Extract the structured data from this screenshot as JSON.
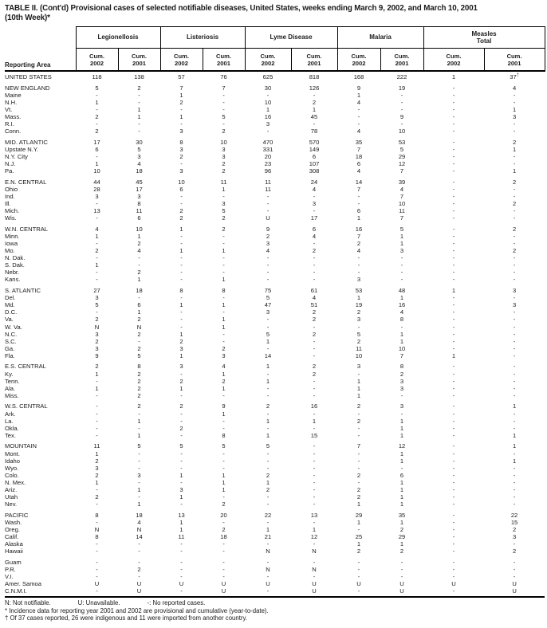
{
  "title": {
    "line1": "TABLE II. (Cont'd) Provisional cases of selected notifiable diseases, United States, weeks ending March 9, 2002, and March 10, 2001",
    "line2": "(10th Week)*"
  },
  "table": {
    "reporting_area_label": "Reporting Area",
    "groups": [
      {
        "label": "Legionellosis"
      },
      {
        "label": "Listeriosis"
      },
      {
        "label": "Lyme Disease"
      },
      {
        "label": "Malaria"
      },
      {
        "label": "Measles\nTotal"
      }
    ],
    "subheader_label": "Cum.",
    "subheader_years": [
      "2002",
      "2001"
    ],
    "rows": [
      {
        "area": "UNITED STATES",
        "gap": false,
        "values": [
          "118",
          "138",
          "57",
          "76",
          "625",
          "818",
          "168",
          "222",
          "1",
          "37†"
        ]
      },
      {
        "area": "NEW ENGLAND",
        "gap": true,
        "values": [
          "5",
          "2",
          "7",
          "7",
          "30",
          "126",
          "9",
          "19",
          "-",
          "4"
        ]
      },
      {
        "area": "Maine",
        "gap": false,
        "values": [
          "-",
          "-",
          "1",
          "-",
          "-",
          "-",
          "1",
          "-",
          "-",
          "-"
        ]
      },
      {
        "area": "N.H.",
        "gap": false,
        "values": [
          "1",
          "-",
          "2",
          "-",
          "10",
          "2",
          "4",
          "-",
          "-",
          "-"
        ]
      },
      {
        "area": "Vt.",
        "gap": false,
        "values": [
          "-",
          "1",
          "-",
          "-",
          "1",
          "1",
          "-",
          "-",
          "-",
          "1"
        ]
      },
      {
        "area": "Mass.",
        "gap": false,
        "values": [
          "2",
          "1",
          "1",
          "5",
          "16",
          "45",
          "-",
          "9",
          "-",
          "3"
        ]
      },
      {
        "area": "R.I.",
        "gap": false,
        "values": [
          "-",
          "-",
          "-",
          "-",
          "3",
          "-",
          "-",
          "-",
          "-",
          "-"
        ]
      },
      {
        "area": "Conn.",
        "gap": false,
        "values": [
          "2",
          "-",
          "3",
          "2",
          "-",
          "78",
          "4",
          "10",
          "-",
          "-"
        ]
      },
      {
        "area": "MID. ATLANTIC",
        "gap": true,
        "values": [
          "17",
          "30",
          "8",
          "10",
          "470",
          "570",
          "35",
          "53",
          "-",
          "2"
        ]
      },
      {
        "area": "Upstate N.Y.",
        "gap": false,
        "values": [
          "6",
          "5",
          "3",
          "3",
          "331",
          "149",
          "7",
          "5",
          "-",
          "1"
        ]
      },
      {
        "area": "N.Y. City",
        "gap": false,
        "values": [
          "-",
          "3",
          "2",
          "3",
          "20",
          "6",
          "18",
          "29",
          "-",
          "-"
        ]
      },
      {
        "area": "N.J.",
        "gap": false,
        "values": [
          "1",
          "4",
          "-",
          "2",
          "23",
          "107",
          "6",
          "12",
          "-",
          "-"
        ]
      },
      {
        "area": "Pa.",
        "gap": false,
        "values": [
          "10",
          "18",
          "3",
          "2",
          "96",
          "308",
          "4",
          "7",
          "-",
          "1"
        ]
      },
      {
        "area": "E.N. CENTRAL",
        "gap": true,
        "values": [
          "44",
          "45",
          "10",
          "11",
          "11",
          "24",
          "14",
          "39",
          "-",
          "2"
        ]
      },
      {
        "area": "Ohio",
        "gap": false,
        "values": [
          "28",
          "17",
          "6",
          "1",
          "11",
          "4",
          "7",
          "4",
          "-",
          "-"
        ]
      },
      {
        "area": "Ind.",
        "gap": false,
        "values": [
          "3",
          "3",
          "-",
          "-",
          "-",
          "-",
          "-",
          "7",
          "-",
          "-"
        ]
      },
      {
        "area": "Ill.",
        "gap": false,
        "values": [
          "-",
          "8",
          "-",
          "3",
          "-",
          "3",
          "-",
          "10",
          "-",
          "2"
        ]
      },
      {
        "area": "Mich.",
        "gap": false,
        "values": [
          "13",
          "11",
          "2",
          "5",
          "-",
          "-",
          "6",
          "11",
          "-",
          "-"
        ]
      },
      {
        "area": "Wis.",
        "gap": false,
        "values": [
          "-",
          "6",
          "2",
          "2",
          "U",
          "17",
          "1",
          "7",
          "-",
          "-"
        ]
      },
      {
        "area": "W.N. CENTRAL",
        "gap": true,
        "values": [
          "4",
          "10",
          "1",
          "2",
          "9",
          "6",
          "16",
          "5",
          "-",
          "2"
        ]
      },
      {
        "area": "Minn.",
        "gap": false,
        "values": [
          "1",
          "1",
          "-",
          "-",
          "2",
          "4",
          "7",
          "1",
          "-",
          "-"
        ]
      },
      {
        "area": "Iowa",
        "gap": false,
        "values": [
          "-",
          "2",
          "-",
          "-",
          "3",
          "-",
          "2",
          "1",
          "-",
          "-"
        ]
      },
      {
        "area": "Mo.",
        "gap": false,
        "values": [
          "2",
          "4",
          "1",
          "1",
          "4",
          "2",
          "4",
          "3",
          "-",
          "2"
        ]
      },
      {
        "area": "N. Dak.",
        "gap": false,
        "values": [
          "-",
          "-",
          "-",
          "-",
          "-",
          "-",
          "-",
          "-",
          "-",
          "-"
        ]
      },
      {
        "area": "S. Dak.",
        "gap": false,
        "values": [
          "1",
          "-",
          "-",
          "-",
          "-",
          "-",
          "-",
          "-",
          "-",
          "-"
        ]
      },
      {
        "area": "Nebr.",
        "gap": false,
        "values": [
          "-",
          "2",
          "-",
          "-",
          "-",
          "-",
          "-",
          "-",
          "-",
          "-"
        ]
      },
      {
        "area": "Kans.",
        "gap": false,
        "values": [
          "-",
          "1",
          "-",
          "1",
          "-",
          "-",
          "3",
          "-",
          "-",
          "-"
        ]
      },
      {
        "area": "S. ATLANTIC",
        "gap": true,
        "values": [
          "27",
          "18",
          "8",
          "8",
          "75",
          "61",
          "53",
          "48",
          "1",
          "3"
        ]
      },
      {
        "area": "Del.",
        "gap": false,
        "values": [
          "3",
          "-",
          "-",
          "-",
          "5",
          "4",
          "1",
          "1",
          "-",
          "-"
        ]
      },
      {
        "area": "Md.",
        "gap": false,
        "values": [
          "5",
          "6",
          "1",
          "1",
          "47",
          "51",
          "19",
          "16",
          "-",
          "3"
        ]
      },
      {
        "area": "D.C.",
        "gap": false,
        "values": [
          "-",
          "1",
          "-",
          "-",
          "3",
          "2",
          "2",
          "4",
          "-",
          "-"
        ]
      },
      {
        "area": "Va.",
        "gap": false,
        "values": [
          "2",
          "2",
          "-",
          "1",
          "-",
          "2",
          "3",
          "8",
          "-",
          "-"
        ]
      },
      {
        "area": "W. Va.",
        "gap": false,
        "values": [
          "N",
          "N",
          "-",
          "1",
          "-",
          "-",
          "-",
          "-",
          "-",
          "-"
        ]
      },
      {
        "area": "N.C.",
        "gap": false,
        "values": [
          "3",
          "2",
          "1",
          "-",
          "5",
          "2",
          "5",
          "1",
          "-",
          "-"
        ]
      },
      {
        "area": "S.C.",
        "gap": false,
        "values": [
          "2",
          "-",
          "2",
          "-",
          "1",
          "-",
          "2",
          "1",
          "-",
          "-"
        ]
      },
      {
        "area": "Ga.",
        "gap": false,
        "values": [
          "3",
          "2",
          "3",
          "2",
          "-",
          "-",
          "11",
          "10",
          "-",
          "-"
        ]
      },
      {
        "area": "Fla.",
        "gap": false,
        "values": [
          "9",
          "5",
          "1",
          "3",
          "14",
          "-",
          "10",
          "7",
          "1",
          "-"
        ]
      },
      {
        "area": "E.S. CENTRAL",
        "gap": true,
        "values": [
          "2",
          "8",
          "3",
          "4",
          "1",
          "2",
          "3",
          "8",
          "-",
          "-"
        ]
      },
      {
        "area": "Ky.",
        "gap": false,
        "values": [
          "1",
          "2",
          "-",
          "1",
          "-",
          "2",
          "-",
          "2",
          "-",
          "-"
        ]
      },
      {
        "area": "Tenn.",
        "gap": false,
        "values": [
          "-",
          "2",
          "2",
          "2",
          "1",
          "-",
          "1",
          "3",
          "-",
          "-"
        ]
      },
      {
        "area": "Ala.",
        "gap": false,
        "values": [
          "1",
          "2",
          "1",
          "1",
          "-",
          "-",
          "1",
          "3",
          "-",
          "-"
        ]
      },
      {
        "area": "Miss.",
        "gap": false,
        "values": [
          "-",
          "2",
          "-",
          "-",
          "-",
          "-",
          "1",
          "-",
          "-",
          "-"
        ]
      },
      {
        "area": "W.S. CENTRAL",
        "gap": true,
        "values": [
          "-",
          "2",
          "2",
          "9",
          "2",
          "16",
          "2",
          "3",
          "-",
          "1"
        ]
      },
      {
        "area": "Ark.",
        "gap": false,
        "values": [
          "-",
          "-",
          "-",
          "1",
          "-",
          "-",
          "-",
          "-",
          "-",
          "-"
        ]
      },
      {
        "area": "La.",
        "gap": false,
        "values": [
          "-",
          "1",
          "-",
          "-",
          "1",
          "1",
          "2",
          "1",
          "-",
          "-"
        ]
      },
      {
        "area": "Okla.",
        "gap": false,
        "values": [
          "-",
          "-",
          "2",
          "-",
          "-",
          "-",
          "-",
          "1",
          "-",
          "-"
        ]
      },
      {
        "area": "Tex.",
        "gap": false,
        "values": [
          "-",
          "1",
          "-",
          "8",
          "1",
          "15",
          "-",
          "1",
          "-",
          "1"
        ]
      },
      {
        "area": "MOUNTAIN",
        "gap": true,
        "values": [
          "11",
          "5",
          "5",
          "5",
          "5",
          "-",
          "7",
          "12",
          "-",
          "1"
        ]
      },
      {
        "area": "Mont.",
        "gap": false,
        "values": [
          "1",
          "-",
          "-",
          "-",
          "-",
          "-",
          "-",
          "1",
          "-",
          "-"
        ]
      },
      {
        "area": "Idaho",
        "gap": false,
        "values": [
          "2",
          "-",
          "-",
          "-",
          "-",
          "-",
          "-",
          "1",
          "-",
          "1"
        ]
      },
      {
        "area": "Wyo.",
        "gap": false,
        "values": [
          "3",
          "-",
          "-",
          "-",
          "-",
          "-",
          "-",
          "-",
          "-",
          "-"
        ]
      },
      {
        "area": "Colo.",
        "gap": false,
        "values": [
          "2",
          "3",
          "1",
          "1",
          "2",
          "-",
          "2",
          "6",
          "-",
          "-"
        ]
      },
      {
        "area": "N. Mex.",
        "gap": false,
        "values": [
          "1",
          "-",
          "-",
          "1",
          "1",
          "-",
          "-",
          "1",
          "-",
          "-"
        ]
      },
      {
        "area": "Ariz.",
        "gap": false,
        "values": [
          "-",
          "1",
          "3",
          "1",
          "2",
          "-",
          "2",
          "1",
          "-",
          "-"
        ]
      },
      {
        "area": "Utah",
        "gap": false,
        "values": [
          "2",
          "-",
          "1",
          "-",
          "-",
          "-",
          "2",
          "1",
          "-",
          "-"
        ]
      },
      {
        "area": "Nev.",
        "gap": false,
        "values": [
          "-",
          "1",
          "-",
          "2",
          "-",
          "-",
          "1",
          "1",
          "-",
          "-"
        ]
      },
      {
        "area": "PACIFIC",
        "gap": true,
        "values": [
          "8",
          "18",
          "13",
          "20",
          "22",
          "13",
          "29",
          "35",
          "-",
          "22"
        ]
      },
      {
        "area": "Wash.",
        "gap": false,
        "values": [
          "-",
          "4",
          "1",
          "-",
          "-",
          "-",
          "1",
          "1",
          "-",
          "15"
        ]
      },
      {
        "area": "Oreg.",
        "gap": false,
        "values": [
          "N",
          "N",
          "1",
          "2",
          "1",
          "1",
          "-",
          "2",
          "-",
          "2"
        ]
      },
      {
        "area": "Calif.",
        "gap": false,
        "values": [
          "8",
          "14",
          "11",
          "18",
          "21",
          "12",
          "25",
          "29",
          "-",
          "3"
        ]
      },
      {
        "area": "Alaska",
        "gap": false,
        "values": [
          "-",
          "-",
          "-",
          "-",
          "-",
          "-",
          "1",
          "1",
          "-",
          "-"
        ]
      },
      {
        "area": "Hawaii",
        "gap": false,
        "values": [
          "-",
          "-",
          "-",
          "-",
          "N",
          "N",
          "2",
          "2",
          "-",
          "2"
        ]
      },
      {
        "area": "Guam",
        "gap": true,
        "values": [
          "-",
          "-",
          "-",
          "-",
          "-",
          "-",
          "-",
          "-",
          "-",
          "-"
        ]
      },
      {
        "area": "P.R.",
        "gap": false,
        "values": [
          "-",
          "2",
          "-",
          "-",
          "N",
          "N",
          "-",
          "-",
          "-",
          "-"
        ]
      },
      {
        "area": "V.I.",
        "gap": false,
        "values": [
          "-",
          "-",
          "-",
          "-",
          "-",
          "-",
          "-",
          "-",
          "-",
          "-"
        ]
      },
      {
        "area": "Amer. Samoa",
        "gap": false,
        "values": [
          "U",
          "U",
          "U",
          "U",
          "U",
          "U",
          "U",
          "U",
          "U",
          "U"
        ]
      },
      {
        "area": "C.N.M.I.",
        "gap": false,
        "values": [
          "-",
          "U",
          "-",
          "U",
          "-",
          "U",
          "-",
          "U",
          "-",
          "U"
        ]
      }
    ]
  },
  "footnotes": {
    "legend_n": "N: Not notifiable.",
    "legend_u": "U: Unavailable.",
    "legend_dash": "-: No reported cases.",
    "asterisk": "* Incidence data for reporting year 2001 and 2002 are provisional and cumulative (year-to-date).",
    "dagger": "† Of 37 cases reported, 26 were indigenous and 11 were imported from another country."
  }
}
